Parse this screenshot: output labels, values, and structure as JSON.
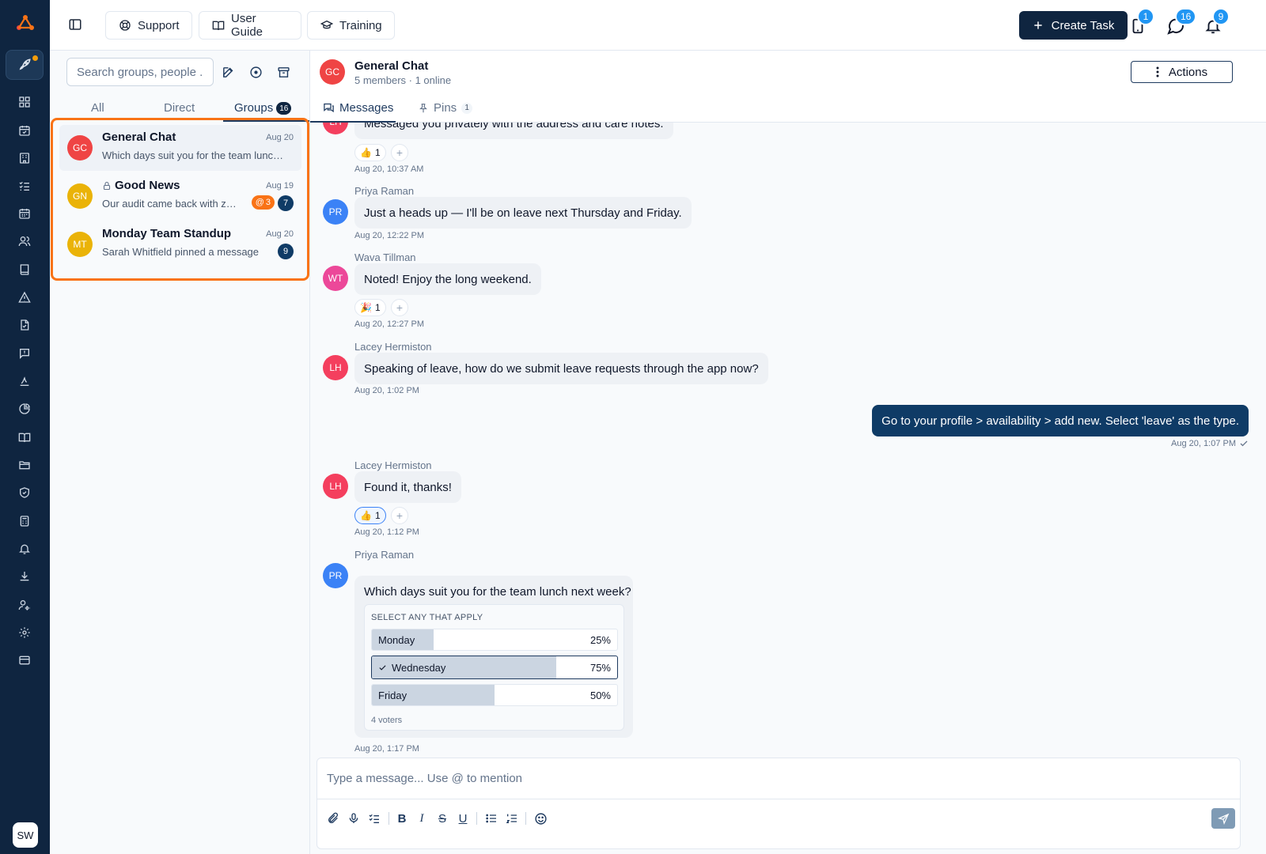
{
  "colors": {
    "sidebar": "#0f2540",
    "accent": "#0f3b66",
    "highlight": "#f97316",
    "notification_badge": "#2196f3"
  },
  "user": {
    "initials": "SW"
  },
  "topbar": {
    "support_label": "Support",
    "user_guide_label": "User Guide",
    "training_label": "Training",
    "create_task_label": "Create Task",
    "tasks_badge": "1",
    "messages_badge": "16",
    "notifications_badge": "9"
  },
  "sidebar": {
    "icons": [
      "rocket-icon",
      "dashboard-icon",
      "calendar-check-icon",
      "building-icon",
      "checklist-icon",
      "calendar-icon",
      "people-icon",
      "book-icon",
      "warning-icon",
      "document-icon",
      "feedback-icon",
      "signature-icon",
      "pie-chart-icon",
      "open-book-icon",
      "folder-icon",
      "shield-icon",
      "calculator-icon",
      "bell-icon",
      "download-icon",
      "user-settings-icon",
      "gear-icon",
      "card-icon"
    ]
  },
  "conversations": {
    "search_placeholder": "Search groups, people ...",
    "tabs": {
      "all": "All",
      "direct": "Direct",
      "groups": "Groups",
      "groups_count": "16"
    },
    "items": [
      {
        "initials": "GC",
        "name": "General Chat",
        "date": "Aug 20",
        "preview": "Which days suit you for the team lunch next week?",
        "avatar_color": "#ef4444"
      },
      {
        "initials": "GN",
        "name": "Good News",
        "date": "Aug 19",
        "preview": "Our audit came back with zero findings",
        "mentions": "3",
        "unread": "7",
        "avatar_color": "#eab308",
        "locked": true
      },
      {
        "initials": "MT",
        "name": "Monday Team Standup",
        "date": "Aug 20",
        "preview": "Sarah Whitfield pinned a message",
        "unread": "9",
        "avatar_color": "#eab308"
      }
    ]
  },
  "chat": {
    "initials": "GC",
    "title": "General Chat",
    "subtitle": "5 members · 1 online",
    "actions_label": "Actions",
    "tabs": {
      "messages": "Messages",
      "pins": "Pins",
      "pins_count": "1"
    },
    "messages": [
      {
        "initials": "LH",
        "text": "Messaged you privately with the address and care notes.",
        "reaction_emoji": "👍",
        "reaction_count": "1",
        "time": "Aug 20, 10:37 AM"
      },
      {
        "sender": "Priya Raman",
        "initials": "PR",
        "text": "Just a heads up — I'll be on leave next Thursday and Friday.",
        "time": "Aug 20, 12:22 PM"
      },
      {
        "sender": "Wava Tillman",
        "initials": "WT",
        "text": "Noted! Enjoy the long weekend.",
        "reaction_emoji": "🎉",
        "reaction_count": "1",
        "time": "Aug 20, 12:27 PM"
      },
      {
        "sender": "Lacey Hermiston",
        "initials": "LH",
        "text": "Speaking of leave, how do we submit leave requests through the app now?",
        "time": "Aug 20, 1:02 PM"
      },
      {
        "own": true,
        "text": "Go to your profile > availability > add new. Select 'leave' as the type.",
        "time": "Aug 20, 1:07 PM"
      },
      {
        "sender": "Lacey Hermiston",
        "initials": "LH",
        "text": "Found it, thanks!",
        "reaction_emoji": "👍",
        "reaction_count": "1",
        "time": "Aug 20, 1:12 PM"
      },
      {
        "sender": "Priya Raman",
        "initials": "PR",
        "text": "Which days suit you for the team lunch next week?",
        "time": "Aug 20, 1:17 PM"
      }
    ],
    "poll": {
      "hint": "SELECT ANY THAT APPLY",
      "options": [
        {
          "label": "Monday",
          "percent": "25%",
          "value": 0.25,
          "selected": false
        },
        {
          "label": "Wednesday",
          "percent": "75%",
          "value": 0.75,
          "selected": true
        },
        {
          "label": "Friday",
          "percent": "50%",
          "value": 0.5,
          "selected": false
        }
      ],
      "voters": "4 voters"
    },
    "composer_placeholder": "Type a message... Use @ to mention"
  }
}
